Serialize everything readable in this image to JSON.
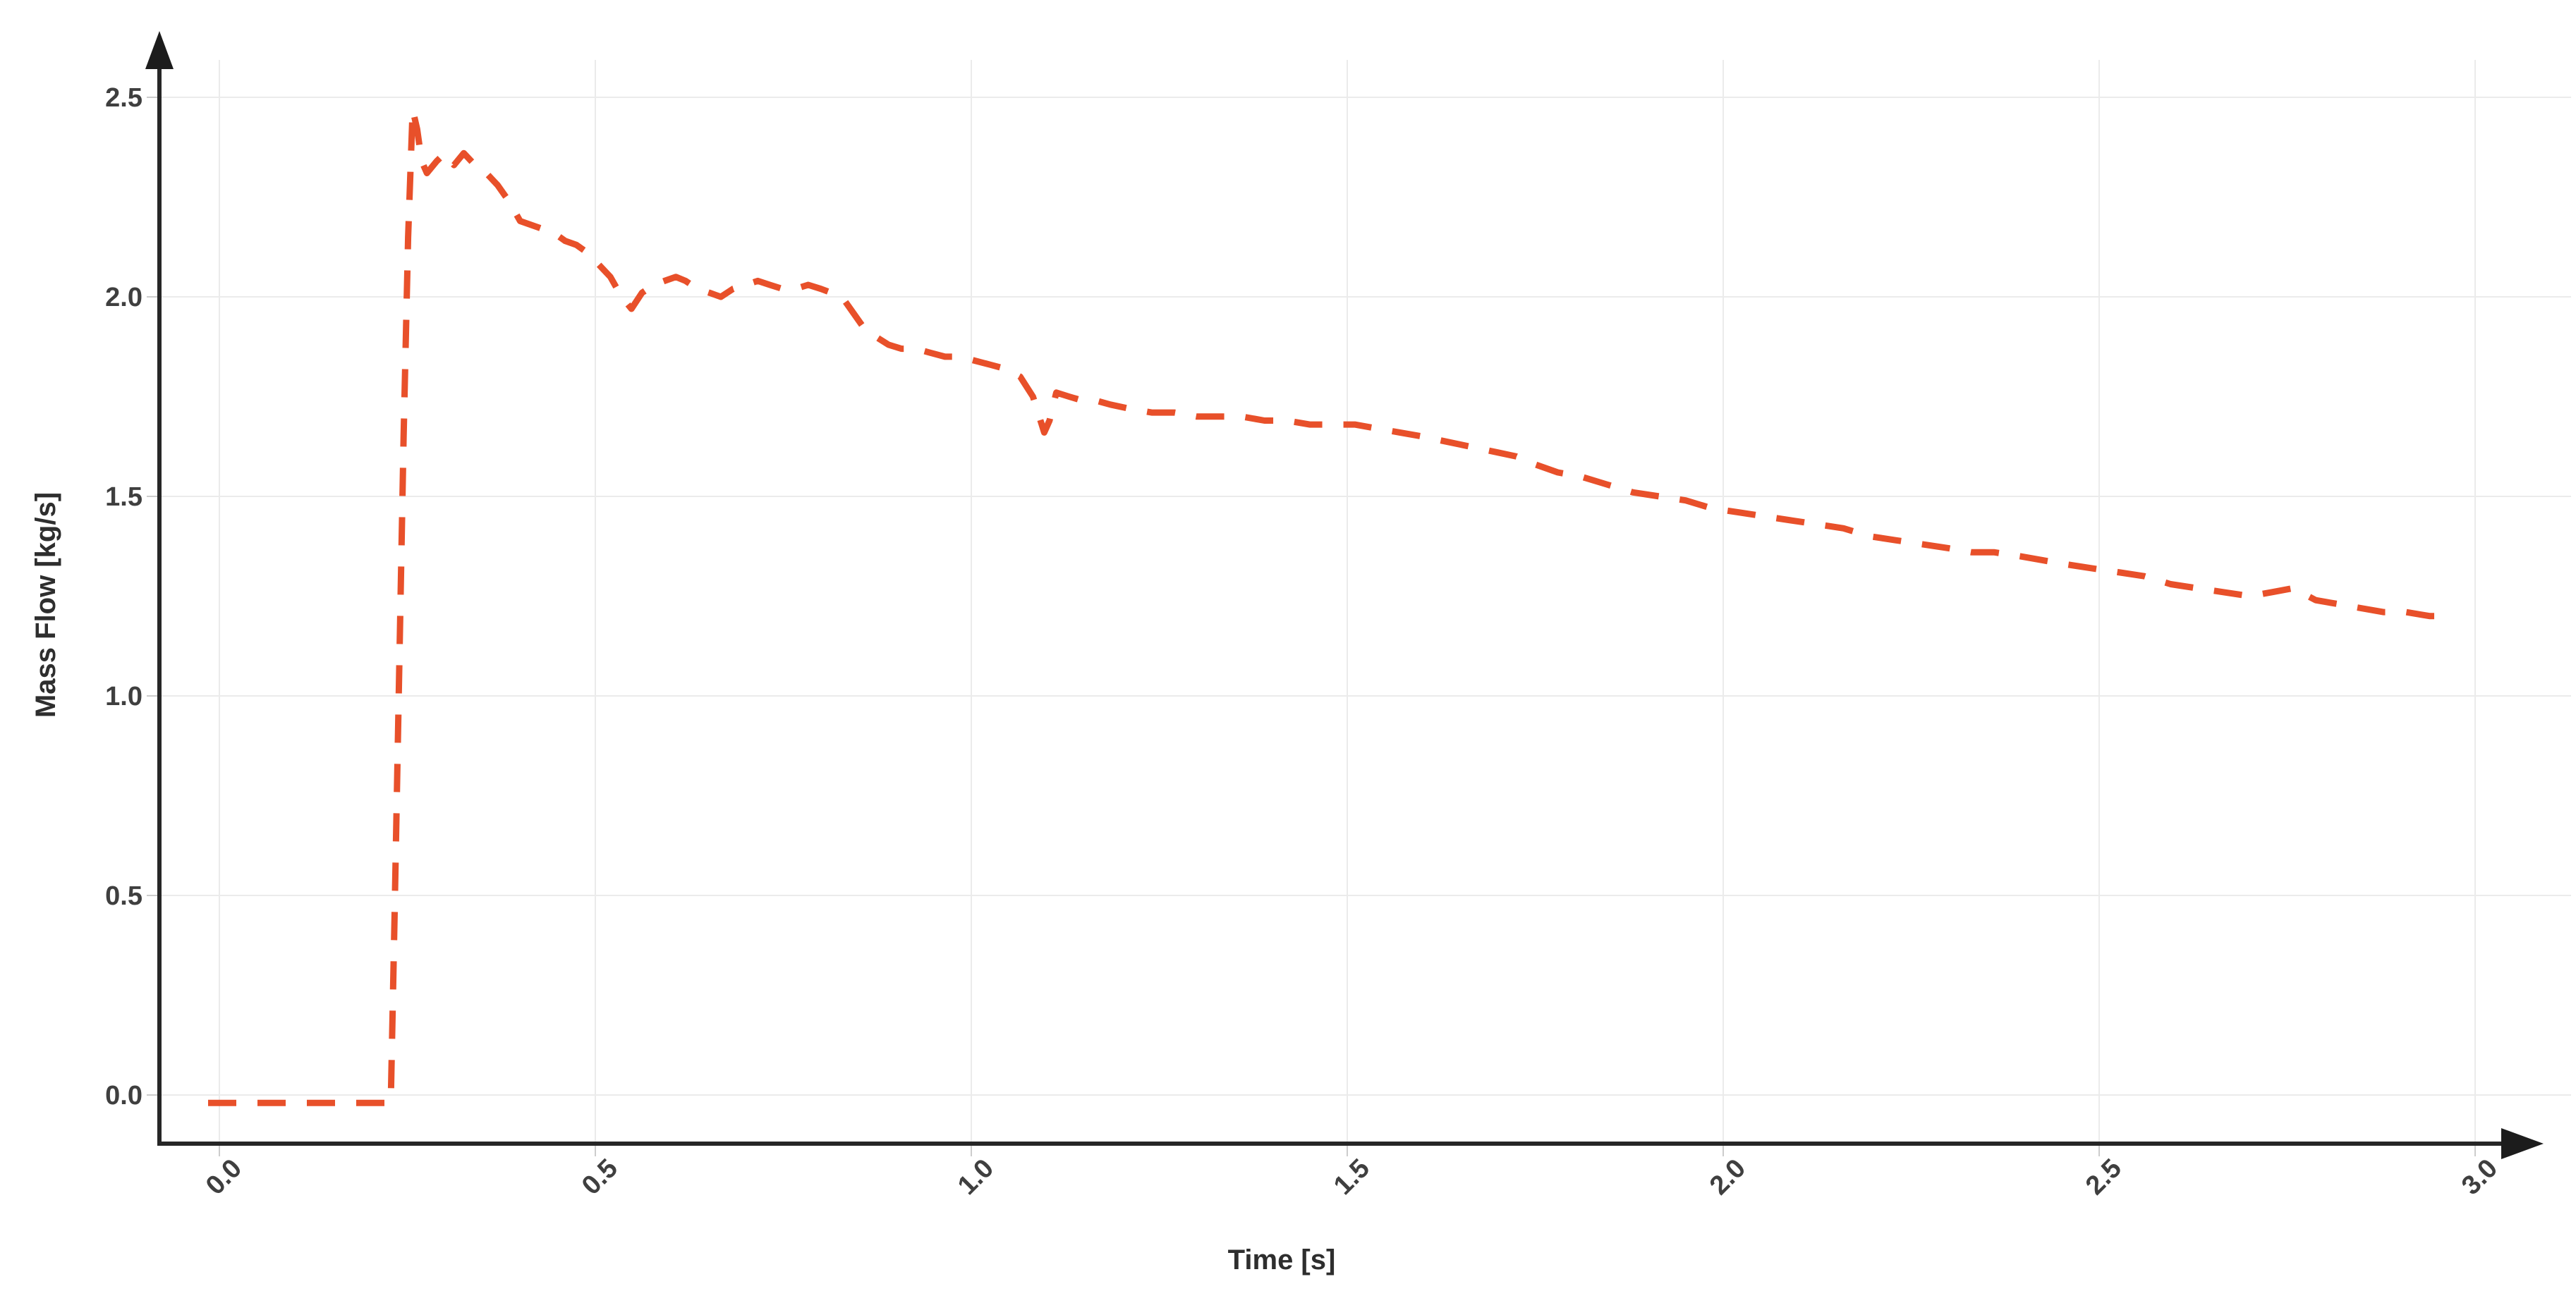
{
  "chart_data": {
    "type": "line",
    "title": "",
    "xlabel": "Time [s]",
    "ylabel": "Mass Flow [kg/s]",
    "xticks": [
      "0.0",
      "0.5",
      "1.0",
      "1.5",
      "2.0",
      "2.5",
      "3.0"
    ],
    "yticks": [
      "0.0",
      "0.5",
      "1.0",
      "1.5",
      "2.0",
      "2.5"
    ],
    "xlim": [
      -0.08,
      3.08
    ],
    "ylim": [
      -0.12,
      2.6
    ],
    "grid": true,
    "legend": false,
    "series": [
      {
        "name": "Mass Flow",
        "style": "dashed",
        "color": "#e8502a",
        "points": [
          [
            -0.015,
            -0.02
          ],
          [
            0.02,
            -0.02
          ],
          [
            0.06,
            -0.02
          ],
          [
            0.1,
            -0.02
          ],
          [
            0.14,
            -0.02
          ],
          [
            0.18,
            -0.02
          ],
          [
            0.215,
            -0.02
          ],
          [
            0.228,
            -0.02
          ],
          [
            0.233,
            0.45
          ],
          [
            0.239,
            1.05
          ],
          [
            0.245,
            1.65
          ],
          [
            0.251,
            2.15
          ],
          [
            0.257,
            2.47
          ],
          [
            0.263,
            2.42
          ],
          [
            0.269,
            2.34
          ],
          [
            0.276,
            2.31
          ],
          [
            0.289,
            2.34
          ],
          [
            0.3,
            2.36
          ],
          [
            0.312,
            2.33
          ],
          [
            0.325,
            2.36
          ],
          [
            0.34,
            2.33
          ],
          [
            0.355,
            2.31
          ],
          [
            0.37,
            2.28
          ],
          [
            0.385,
            2.24
          ],
          [
            0.4,
            2.19
          ],
          [
            0.415,
            2.18
          ],
          [
            0.43,
            2.17
          ],
          [
            0.445,
            2.16
          ],
          [
            0.46,
            2.14
          ],
          [
            0.475,
            2.13
          ],
          [
            0.49,
            2.11
          ],
          [
            0.505,
            2.08
          ],
          [
            0.52,
            2.05
          ],
          [
            0.535,
            2.0
          ],
          [
            0.548,
            1.97
          ],
          [
            0.562,
            2.01
          ],
          [
            0.578,
            2.03
          ],
          [
            0.592,
            2.04
          ],
          [
            0.607,
            2.05
          ],
          [
            0.62,
            2.04
          ],
          [
            0.636,
            2.02
          ],
          [
            0.652,
            2.01
          ],
          [
            0.667,
            2.0
          ],
          [
            0.683,
            2.02
          ],
          [
            0.7,
            2.03
          ],
          [
            0.716,
            2.04
          ],
          [
            0.732,
            2.03
          ],
          [
            0.749,
            2.02
          ],
          [
            0.766,
            2.02
          ],
          [
            0.783,
            2.03
          ],
          [
            0.8,
            2.02
          ],
          [
            0.814,
            2.01
          ],
          [
            0.828,
            2.0
          ],
          [
            0.843,
            1.96
          ],
          [
            0.858,
            1.92
          ],
          [
            0.873,
            1.9
          ],
          [
            0.89,
            1.88
          ],
          [
            0.907,
            1.87
          ],
          [
            0.926,
            1.87
          ],
          [
            0.945,
            1.86
          ],
          [
            0.965,
            1.85
          ],
          [
            0.985,
            1.85
          ],
          [
            1.005,
            1.84
          ],
          [
            1.025,
            1.83
          ],
          [
            1.045,
            1.82
          ],
          [
            1.065,
            1.8
          ],
          [
            1.082,
            1.75
          ],
          [
            1.097,
            1.66
          ],
          [
            1.104,
            1.69
          ],
          [
            1.113,
            1.76
          ],
          [
            1.13,
            1.75
          ],
          [
            1.148,
            1.74
          ],
          [
            1.166,
            1.74
          ],
          [
            1.185,
            1.73
          ],
          [
            1.21,
            1.72
          ],
          [
            1.24,
            1.71
          ],
          [
            1.27,
            1.71
          ],
          [
            1.3,
            1.7
          ],
          [
            1.33,
            1.7
          ],
          [
            1.36,
            1.7
          ],
          [
            1.39,
            1.69
          ],
          [
            1.42,
            1.69
          ],
          [
            1.45,
            1.68
          ],
          [
            1.48,
            1.68
          ],
          [
            1.51,
            1.68
          ],
          [
            1.54,
            1.67
          ],
          [
            1.57,
            1.66
          ],
          [
            1.6,
            1.65
          ],
          [
            1.625,
            1.64
          ],
          [
            1.65,
            1.63
          ],
          [
            1.675,
            1.62
          ],
          [
            1.7,
            1.61
          ],
          [
            1.725,
            1.6
          ],
          [
            1.75,
            1.58
          ],
          [
            1.78,
            1.56
          ],
          [
            1.81,
            1.55
          ],
          [
            1.845,
            1.53
          ],
          [
            1.88,
            1.51
          ],
          [
            1.915,
            1.5
          ],
          [
            1.95,
            1.49
          ],
          [
            1.985,
            1.47
          ],
          [
            2.02,
            1.46
          ],
          [
            2.055,
            1.45
          ],
          [
            2.09,
            1.44
          ],
          [
            2.125,
            1.43
          ],
          [
            2.16,
            1.42
          ],
          [
            2.195,
            1.4
          ],
          [
            2.23,
            1.39
          ],
          [
            2.265,
            1.38
          ],
          [
            2.3,
            1.37
          ],
          [
            2.33,
            1.36
          ],
          [
            2.36,
            1.36
          ],
          [
            2.395,
            1.35
          ],
          [
            2.425,
            1.34
          ],
          [
            2.455,
            1.33
          ],
          [
            2.49,
            1.32
          ],
          [
            2.525,
            1.31
          ],
          [
            2.56,
            1.3
          ],
          [
            2.595,
            1.28
          ],
          [
            2.63,
            1.27
          ],
          [
            2.665,
            1.26
          ],
          [
            2.7,
            1.25
          ],
          [
            2.73,
            1.26
          ],
          [
            2.758,
            1.27
          ],
          [
            2.788,
            1.24
          ],
          [
            2.818,
            1.23
          ],
          [
            2.848,
            1.22
          ],
          [
            2.878,
            1.21
          ],
          [
            2.908,
            1.21
          ],
          [
            2.94,
            1.2
          ],
          [
            2.97,
            1.2
          ]
        ]
      }
    ]
  },
  "colors": {
    "line": "#e8502a",
    "axis": "#262626",
    "arrow": "#1c1c1c",
    "grid": "#ebebeb",
    "tick_mark": "#cccccc",
    "tick_label": "#3f3f3f",
    "axis_title": "#2e2e2e",
    "background": "#ffffff"
  }
}
